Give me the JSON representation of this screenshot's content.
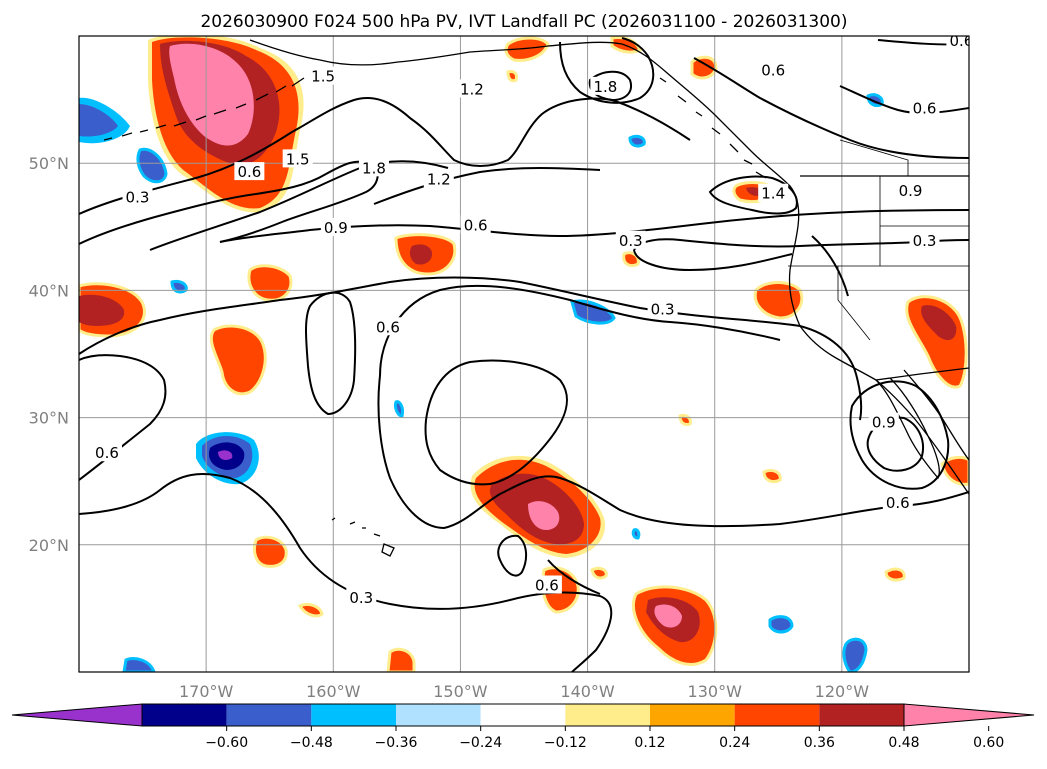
{
  "chart_data": {
    "type": "filled contour map",
    "title": "2026030900 F024 500 hPa PV, IVT Landfall PC (2026031100 - 2026031300)",
    "lon_range": [
      -180,
      -110
    ],
    "lat_range": [
      10,
      60
    ],
    "lat_ticks": [
      {
        "value": 50,
        "label": "50°N"
      },
      {
        "value": 40,
        "label": "40°N"
      },
      {
        "value": 30,
        "label": "30°N"
      },
      {
        "value": 20,
        "label": "20°N"
      }
    ],
    "lon_ticks": [
      {
        "value": -170,
        "label": "170°W"
      },
      {
        "value": -160,
        "label": "160°W"
      },
      {
        "value": -150,
        "label": "150°W"
      },
      {
        "value": -140,
        "label": "140°W"
      },
      {
        "value": -130,
        "label": "130°W"
      },
      {
        "value": -120,
        "label": "120°W"
      }
    ],
    "grid": true,
    "colorbar": {
      "orientation": "horizontal",
      "extend": "both",
      "bins": [
        {
          "color": "#9932cc"
        },
        {
          "color": "#00008b"
        },
        {
          "color": "#3a5fcd"
        },
        {
          "color": "#00bfff"
        },
        {
          "color": "#b0e2ff"
        },
        {
          "color": "#ffffff"
        },
        {
          "color": "#ffec8b"
        },
        {
          "color": "#ffa500"
        },
        {
          "color": "#ff4500"
        },
        {
          "color": "#b22222"
        },
        {
          "color": "#ff82ab"
        }
      ],
      "levels": [
        {
          "value": -0.6,
          "label": "−0.60"
        },
        {
          "value": -0.48,
          "label": "−0.48"
        },
        {
          "value": -0.36,
          "label": "−0.36"
        },
        {
          "value": -0.24,
          "label": "−0.24"
        },
        {
          "value": -0.12,
          "label": "−0.12"
        },
        {
          "value": 0.12,
          "label": "0.12"
        },
        {
          "value": 0.24,
          "label": "0.24"
        },
        {
          "value": 0.36,
          "label": "0.36"
        },
        {
          "value": 0.48,
          "label": "0.48"
        },
        {
          "value": 0.6,
          "label": "0.60"
        }
      ]
    },
    "contour_labels": [
      {
        "text": "0.3",
        "lon": -175.4,
        "lat": 47.3
      },
      {
        "text": "0.6",
        "lon": -166.6,
        "lat": 49.3
      },
      {
        "text": "1.5",
        "lon": -162.8,
        "lat": 50.3
      },
      {
        "text": "1.8",
        "lon": -156.8,
        "lat": 49.6
      },
      {
        "text": "1.2",
        "lon": -151.7,
        "lat": 48.7
      },
      {
        "text": "0.9",
        "lon": -159.8,
        "lat": 44.9
      },
      {
        "text": "0.6",
        "lon": -148.8,
        "lat": 45.1
      },
      {
        "text": "1.5",
        "lon": -160.8,
        "lat": 56.8
      },
      {
        "text": "1.2",
        "lon": -149.1,
        "lat": 55.8
      },
      {
        "text": "1.8",
        "lon": -138.6,
        "lat": 56.0
      },
      {
        "text": "0.6",
        "lon": -125.4,
        "lat": 57.3
      },
      {
        "text": "0.6",
        "lon": -110.6,
        "lat": 59.6
      },
      {
        "text": "0.6",
        "lon": -113.5,
        "lat": 54.3
      },
      {
        "text": "1.4",
        "lon": -125.4,
        "lat": 47.6
      },
      {
        "text": "0.9",
        "lon": -114.6,
        "lat": 47.8
      },
      {
        "text": "0.3",
        "lon": -136.6,
        "lat": 43.9
      },
      {
        "text": "0.3",
        "lon": -113.5,
        "lat": 43.9
      },
      {
        "text": "0.3",
        "lon": -134.1,
        "lat": 38.5
      },
      {
        "text": "0.6",
        "lon": -155.7,
        "lat": 37.1
      },
      {
        "text": "0.9",
        "lon": -116.7,
        "lat": 29.6
      },
      {
        "text": "0.6",
        "lon": -177.8,
        "lat": 27.2
      },
      {
        "text": "0.6",
        "lon": -115.6,
        "lat": 23.3
      },
      {
        "text": "0.6",
        "lon": -143.2,
        "lat": 16.8
      },
      {
        "text": "0.3",
        "lon": -157.8,
        "lat": 15.8
      }
    ]
  }
}
